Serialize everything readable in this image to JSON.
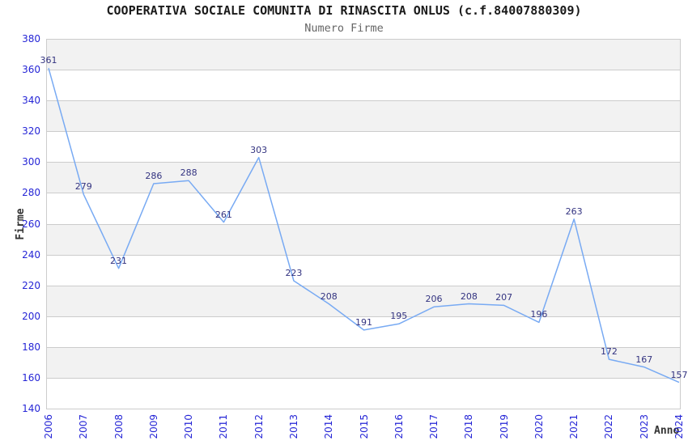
{
  "chart_data": {
    "type": "line",
    "title": "COOPERATIVA SOCIALE COMUNITA DI RINASCITA ONLUS (c.f.84007880309)",
    "subtitle": "Numero Firme",
    "xlabel": "Anno",
    "ylabel": "Firme",
    "categories": [
      "2006",
      "2007",
      "2008",
      "2009",
      "2010",
      "2011",
      "2012",
      "2013",
      "2014",
      "2015",
      "2016",
      "2017",
      "2018",
      "2019",
      "2020",
      "2021",
      "2022",
      "2023",
      "2024"
    ],
    "values": [
      361,
      279,
      231,
      286,
      288,
      261,
      303,
      223,
      208,
      191,
      195,
      206,
      208,
      207,
      196,
      263,
      172,
      167,
      157
    ],
    "ylim": [
      140,
      380
    ],
    "ytick_step": 20,
    "grid": true,
    "legend": "none",
    "point_labels_shown": true,
    "band_pattern": "alternating horizontal bands, gray on odd bands from bottom",
    "colors": {
      "line": "#78aaf3",
      "tick_labels": "#2525d6",
      "point_labels": "#333380",
      "grid": "#cccccc",
      "band": "#f2f2f2",
      "title": "#1a1a1a",
      "subtitle": "#666666",
      "axis_titles": "#333333",
      "background": "#ffffff"
    }
  }
}
